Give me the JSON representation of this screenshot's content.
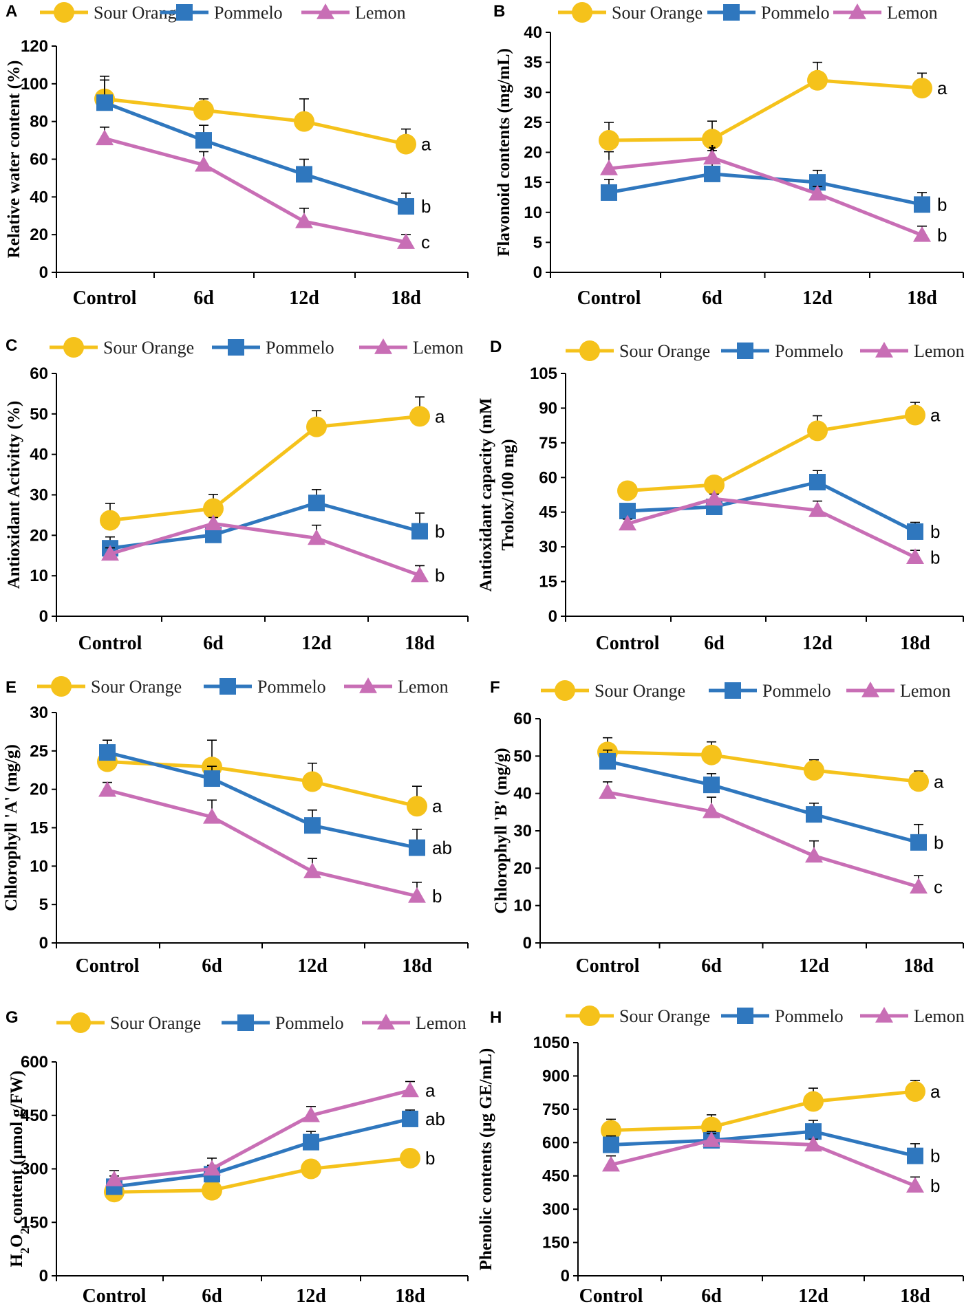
{
  "colors": {
    "sour_orange": "#F5C21B",
    "pommelo": "#2F77BE",
    "lemon": "#C86EB5",
    "axis": "#000000"
  },
  "chart_data": [
    {
      "panel": "A",
      "type": "line",
      "categories": [
        "Control",
        "6d",
        "12d",
        "18d"
      ],
      "ylabel": "Relative water content (%)",
      "ylim": [
        0,
        120
      ],
      "yticks": [
        0,
        20,
        40,
        60,
        80,
        100,
        120
      ],
      "ytick_labels": [
        "0",
        "20",
        "40",
        "60",
        "80",
        "100",
        "120"
      ],
      "series": [
        {
          "name": "Sour Orange",
          "key": "sour_orange",
          "values": [
            92,
            86,
            80,
            68
          ],
          "errors": [
            12,
            6,
            12,
            8
          ],
          "label": "a"
        },
        {
          "name": "Pommelo",
          "key": "pommelo",
          "values": [
            90,
            70,
            52,
            35
          ],
          "errors": [
            12,
            8,
            8,
            7
          ],
          "label": "b"
        },
        {
          "name": "Lemon",
          "key": "lemon",
          "values": [
            71,
            57,
            27,
            16
          ],
          "errors": [
            6,
            7,
            7,
            4
          ],
          "label": "c"
        }
      ],
      "annotations": []
    },
    {
      "panel": "B",
      "type": "line",
      "categories": [
        "Control",
        "6d",
        "12d",
        "18d"
      ],
      "ylabel": "Flavonoid contents (mg/mL)",
      "ylim": [
        0,
        40
      ],
      "yticks": [
        0,
        5,
        10,
        15,
        20,
        25,
        30,
        35,
        40
      ],
      "ytick_labels": [
        "0",
        "5",
        "10",
        "15",
        "20",
        "25",
        "30",
        "35",
        "40"
      ],
      "series": [
        {
          "name": "Sour Orange",
          "key": "sour_orange",
          "values": [
            22,
            22.2,
            32,
            30.7
          ],
          "errors": [
            3,
            3,
            3,
            2.5
          ],
          "label": "a"
        },
        {
          "name": "Pommelo",
          "key": "pommelo",
          "values": [
            13.3,
            16.4,
            15,
            11.3
          ],
          "errors": [
            2.2,
            1.8,
            2,
            2
          ],
          "label": "b"
        },
        {
          "name": "Lemon",
          "key": "lemon",
          "values": [
            17.3,
            19.1,
            13.1,
            6.2
          ],
          "errors": [
            2.8,
            1.2,
            1.2,
            1.5
          ],
          "label": "b"
        }
      ],
      "annotations": [
        {
          "text": "*",
          "category": "6d",
          "value": 20.5
        }
      ]
    },
    {
      "panel": "C",
      "type": "line",
      "categories": [
        "Control",
        "6d",
        "12d",
        "18d"
      ],
      "ylabel": "Antioxidant Activitty (%)",
      "ylim": [
        0,
        60
      ],
      "yticks": [
        0,
        10,
        20,
        30,
        40,
        50,
        60
      ],
      "ytick_labels": [
        "0",
        "10",
        "20",
        "30",
        "40",
        "50",
        "60"
      ],
      "series": [
        {
          "name": "Sour Orange",
          "key": "sour_orange",
          "values": [
            23.7,
            26.6,
            46.8,
            49.4
          ],
          "errors": [
            4.2,
            3.5,
            4,
            4.8
          ],
          "label": "a"
        },
        {
          "name": "Pommelo",
          "key": "pommelo",
          "values": [
            16.8,
            20.1,
            28,
            21
          ],
          "errors": [
            2.8,
            2.5,
            3.3,
            4.5
          ],
          "label": "b"
        },
        {
          "name": "Lemon",
          "key": "lemon",
          "values": [
            15.4,
            22.9,
            19.3,
            10.1
          ],
          "errors": [
            1.5,
            1.5,
            3.2,
            2.4
          ],
          "label": "b"
        }
      ],
      "annotations": []
    },
    {
      "panel": "D",
      "type": "line",
      "categories": [
        "Control",
        "6d",
        "12d",
        "18d"
      ],
      "ylabel": "Antioxidant capacity (mM Trolox/100 mg)",
      "ylabel_lines": [
        "Antioxidant capacity (mM",
        "Trolox/100 mg)"
      ],
      "ylim": [
        0,
        105
      ],
      "yticks": [
        0,
        15,
        30,
        45,
        60,
        75,
        90,
        105
      ],
      "ytick_labels": [
        "0",
        "15",
        "30",
        "45",
        "60",
        "75",
        "90",
        "105"
      ],
      "series": [
        {
          "name": "Sour Orange",
          "key": "sour_orange",
          "values": [
            54.3,
            56.8,
            80.2,
            87
          ],
          "errors": [
            3.5,
            3,
            6.5,
            5.5
          ],
          "label": "a"
        },
        {
          "name": "Pommelo",
          "key": "pommelo",
          "values": [
            45.5,
            47.3,
            58,
            36.6
          ],
          "errors": [
            3,
            3,
            5,
            4
          ],
          "label": "b"
        },
        {
          "name": "Lemon",
          "key": "lemon",
          "values": [
            40,
            50.8,
            45.8,
            25.5
          ],
          "errors": [
            2,
            2,
            4,
            3
          ],
          "label": "b"
        }
      ],
      "annotations": []
    },
    {
      "panel": "E",
      "type": "line",
      "categories": [
        "Control",
        "6d",
        "12d",
        "18d"
      ],
      "ylabel": "Chlorophyll 'A' (mg/g)",
      "ylim": [
        0,
        30
      ],
      "yticks": [
        0,
        5,
        10,
        15,
        20,
        25,
        30
      ],
      "ytick_labels": [
        "0",
        "5",
        "10",
        "15",
        "20",
        "25",
        "30"
      ],
      "series": [
        {
          "name": "Sour Orange",
          "key": "sour_orange",
          "values": [
            23.6,
            22.9,
            21,
            17.8
          ],
          "errors": [
            1.5,
            3.5,
            2.4,
            2.6
          ],
          "label": "a"
        },
        {
          "name": "Pommelo",
          "key": "pommelo",
          "values": [
            24.8,
            21.4,
            15.3,
            12.4
          ],
          "errors": [
            1.6,
            1.6,
            2,
            2.4
          ],
          "label": "ab"
        },
        {
          "name": "Lemon",
          "key": "lemon",
          "values": [
            19.9,
            16.4,
            9.3,
            6.1
          ],
          "errors": [
            1,
            2.2,
            1.7,
            1.8
          ],
          "label": "b"
        }
      ],
      "annotations": []
    },
    {
      "panel": "F",
      "type": "line",
      "categories": [
        "Control",
        "6d",
        "12d",
        "18d"
      ],
      "ylabel": "Chlorophyll 'B' (mg/g)",
      "ylim": [
        0,
        60
      ],
      "yticks": [
        0,
        10,
        20,
        30,
        40,
        50,
        60
      ],
      "ytick_labels": [
        "0",
        "10",
        "20",
        "30",
        "40",
        "50",
        "60"
      ],
      "series": [
        {
          "name": "Sour Orange",
          "key": "sour_orange",
          "values": [
            51.1,
            50.3,
            46.2,
            43.2
          ],
          "errors": [
            3.8,
            3.5,
            2.8,
            2.8
          ],
          "label": "a"
        },
        {
          "name": "Pommelo",
          "key": "pommelo",
          "values": [
            48.6,
            42.3,
            34.4,
            26.9
          ],
          "errors": [
            3,
            3,
            3,
            4.8
          ],
          "label": "b"
        },
        {
          "name": "Lemon",
          "key": "lemon",
          "values": [
            40.3,
            35.2,
            23.3,
            15
          ],
          "errors": [
            2.8,
            3.8,
            4,
            3
          ],
          "label": "c"
        }
      ],
      "annotations": []
    },
    {
      "panel": "G",
      "type": "line",
      "categories": [
        "Control",
        "6d",
        "12d",
        "18d"
      ],
      "ylabel": "H2O2 content (µmol g/FW)",
      "ylim": [
        0,
        600
      ],
      "yticks": [
        0,
        150,
        300,
        450,
        600
      ],
      "ytick_labels": [
        "0",
        "150",
        "300",
        "450",
        "600"
      ],
      "series": [
        {
          "name": "Sour Orange",
          "key": "sour_orange",
          "values": [
            235,
            240,
            300,
            330
          ],
          "errors": [
            20,
            15,
            20,
            18
          ],
          "label": "b"
        },
        {
          "name": "Pommelo",
          "key": "pommelo",
          "values": [
            250,
            285,
            375,
            440
          ],
          "errors": [
            30,
            25,
            30,
            25
          ],
          "label": "ab"
        },
        {
          "name": "Lemon",
          "key": "lemon",
          "values": [
            270,
            300,
            450,
            520
          ],
          "errors": [
            25,
            30,
            25,
            25
          ],
          "label": "a"
        }
      ],
      "annotations": []
    },
    {
      "panel": "H",
      "type": "line",
      "categories": [
        "Control",
        "6d",
        "12d",
        "18d"
      ],
      "ylabel": "Phenolic contents (µg GE/mL)",
      "ylim": [
        0,
        1050
      ],
      "yticks": [
        0,
        150,
        300,
        450,
        600,
        750,
        900,
        1050
      ],
      "ytick_labels": [
        "0",
        "150",
        "300",
        "450",
        "600",
        "750",
        "900",
        "1050"
      ],
      "series": [
        {
          "name": "Sour Orange",
          "key": "sour_orange",
          "values": [
            655,
            670,
            785,
            830
          ],
          "errors": [
            50,
            55,
            60,
            50
          ],
          "label": "a"
        },
        {
          "name": "Pommelo",
          "key": "pommelo",
          "values": [
            590,
            610,
            650,
            540
          ],
          "errors": [
            40,
            40,
            50,
            55
          ],
          "label": "b"
        },
        {
          "name": "Lemon",
          "key": "lemon",
          "values": [
            500,
            610,
            590,
            405
          ],
          "errors": [
            40,
            30,
            25,
            40
          ],
          "label": "b"
        }
      ],
      "annotations": []
    }
  ]
}
